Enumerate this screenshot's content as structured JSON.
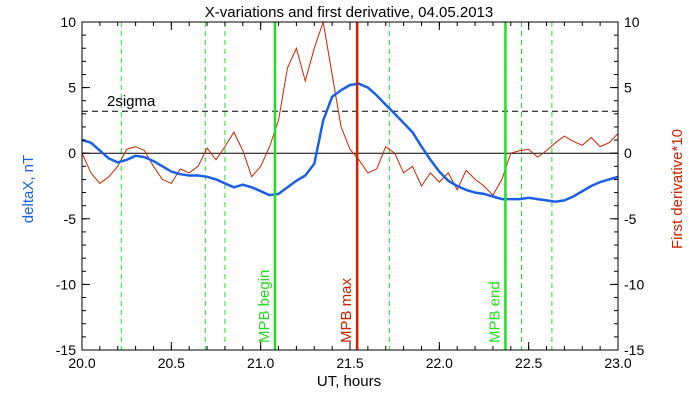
{
  "chart_data": {
    "type": "line",
    "title": "X-variations and first derivative, 04.05.2013",
    "xlabel": "UT, hours",
    "ylabel_left": "deltaX, nT",
    "ylabel_right": "First derivative*10",
    "xlim": [
      20.0,
      23.0
    ],
    "ylim": [
      -15,
      10
    ],
    "x_ticks": [
      "20.0",
      "20.5",
      "21.0",
      "21.5",
      "22.0",
      "22.5",
      "23.0"
    ],
    "y_ticks": [
      "10",
      "5",
      "0",
      "-5",
      "-10",
      "-15"
    ],
    "sigma_label": "2sigma",
    "sigma_level": 3.2,
    "zero_level": 0,
    "colors": {
      "deltaX": "#1a5fe6",
      "derivative": "#cc2200",
      "mpb": "#22dd22",
      "max": "#cc2200"
    },
    "markers": [
      {
        "label": "MPB begin",
        "x": 21.08,
        "color": "#22dd22"
      },
      {
        "label": "MPB max",
        "x": 21.54,
        "color": "#cc2200"
      },
      {
        "label": "MPB end",
        "x": 22.37,
        "color": "#22dd22"
      }
    ],
    "dashed_lines": [
      20.22,
      20.69,
      20.8,
      21.72,
      22.46,
      22.63
    ],
    "series": [
      {
        "name": "deltaX",
        "x": [
          20.0,
          20.05,
          20.1,
          20.15,
          20.2,
          20.25,
          20.3,
          20.35,
          20.4,
          20.45,
          20.5,
          20.55,
          20.6,
          20.65,
          20.7,
          20.75,
          20.8,
          20.85,
          20.9,
          20.95,
          21.0,
          21.05,
          21.1,
          21.15,
          21.2,
          21.25,
          21.3,
          21.35,
          21.4,
          21.45,
          21.5,
          21.55,
          21.6,
          21.65,
          21.7,
          21.75,
          21.8,
          21.85,
          21.9,
          21.95,
          22.0,
          22.05,
          22.1,
          22.15,
          22.2,
          22.25,
          22.3,
          22.35,
          22.4,
          22.45,
          22.5,
          22.55,
          22.6,
          22.65,
          22.7,
          22.75,
          22.8,
          22.85,
          22.9,
          22.95,
          23.0
        ],
        "y": [
          1.0,
          0.8,
          0.2,
          -0.4,
          -0.7,
          -0.5,
          -0.2,
          -0.3,
          -0.6,
          -1.0,
          -1.4,
          -1.6,
          -1.7,
          -1.7,
          -1.8,
          -2.0,
          -2.3,
          -2.6,
          -2.4,
          -2.6,
          -2.9,
          -3.2,
          -3.1,
          -2.6,
          -2.1,
          -1.7,
          -0.8,
          2.5,
          4.3,
          4.8,
          5.2,
          5.3,
          5.0,
          4.4,
          3.7,
          3.0,
          2.3,
          1.6,
          0.5,
          -0.5,
          -1.4,
          -2.1,
          -2.5,
          -2.8,
          -3.0,
          -3.1,
          -3.3,
          -3.5,
          -3.5,
          -3.5,
          -3.4,
          -3.5,
          -3.6,
          -3.7,
          -3.6,
          -3.3,
          -2.9,
          -2.5,
          -2.2,
          -2.0,
          -1.8
        ]
      },
      {
        "name": "First derivative*10",
        "x": [
          20.0,
          20.05,
          20.1,
          20.15,
          20.2,
          20.25,
          20.3,
          20.35,
          20.4,
          20.45,
          20.5,
          20.55,
          20.6,
          20.65,
          20.7,
          20.75,
          20.8,
          20.85,
          20.9,
          20.95,
          21.0,
          21.05,
          21.1,
          21.15,
          21.2,
          21.25,
          21.3,
          21.35,
          21.4,
          21.45,
          21.5,
          21.55,
          21.6,
          21.65,
          21.7,
          21.75,
          21.8,
          21.85,
          21.9,
          21.95,
          22.0,
          22.05,
          22.1,
          22.15,
          22.2,
          22.25,
          22.3,
          22.35,
          22.4,
          22.45,
          22.5,
          22.55,
          22.6,
          22.65,
          22.7,
          22.75,
          22.8,
          22.85,
          22.9,
          22.95,
          23.0
        ],
        "y": [
          0.0,
          -1.5,
          -2.3,
          -1.8,
          -1.0,
          0.3,
          0.5,
          0.2,
          -1.0,
          -2.0,
          -2.3,
          -1.2,
          -1.5,
          -1.0,
          0.4,
          -0.5,
          0.5,
          1.6,
          0.2,
          -1.8,
          -1.0,
          0.5,
          2.5,
          6.5,
          8.0,
          5.5,
          8.0,
          10.0,
          6.0,
          2.0,
          0.3,
          -0.5,
          -1.5,
          -1.2,
          0.5,
          0.0,
          -1.5,
          -1.0,
          -2.5,
          -1.5,
          -2.2,
          -1.5,
          -2.8,
          -1.3,
          -2.0,
          -2.5,
          -3.2,
          -2.0,
          0.0,
          0.2,
          0.3,
          -0.3,
          0.2,
          0.8,
          1.3,
          0.9,
          0.6,
          1.2,
          0.5,
          0.8,
          1.5
        ]
      }
    ]
  }
}
